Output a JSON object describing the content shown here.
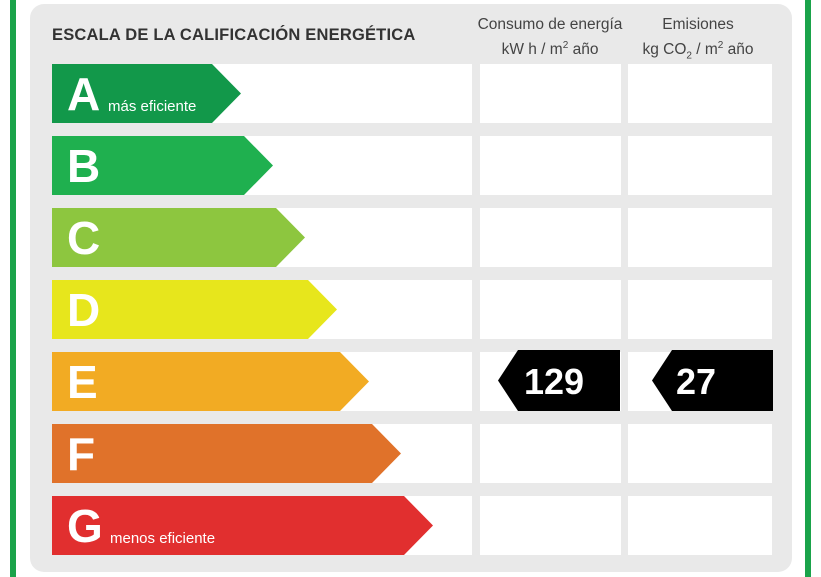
{
  "title": "ESCALA DE LA CALIFICACIÓN ENERGÉTICA",
  "columns": {
    "consumo": {
      "line1": "Consumo de energía",
      "line2_prefix": "kW h  / m",
      "line2_sup": "2",
      "line2_suffix": " año"
    },
    "emisiones": {
      "line1": "Emisiones",
      "line2_prefix": "kg CO",
      "line2_sub": "2",
      "line2_mid": "  / m",
      "line2_sup": "2",
      "line2_suffix": " año"
    }
  },
  "ratings": [
    {
      "letter": "A",
      "note": "más eficiente",
      "color": "#12984a"
    },
    {
      "letter": "B",
      "note": "",
      "color": "#1fb04f"
    },
    {
      "letter": "C",
      "note": "",
      "color": "#8dc63f"
    },
    {
      "letter": "D",
      "note": "",
      "color": "#e7e61c"
    },
    {
      "letter": "E",
      "note": "",
      "color": "#f2ab23"
    },
    {
      "letter": "F",
      "note": "",
      "color": "#e0722a"
    },
    {
      "letter": "G",
      "note": "menos eficiente",
      "color": "#e12f2f"
    }
  ],
  "current_rating": "E",
  "values": {
    "consumo": "129",
    "emisiones": "27"
  },
  "colors": {
    "frame_green": "#1aa34a",
    "badge": "#000000",
    "panel": "#e9e9e9"
  }
}
